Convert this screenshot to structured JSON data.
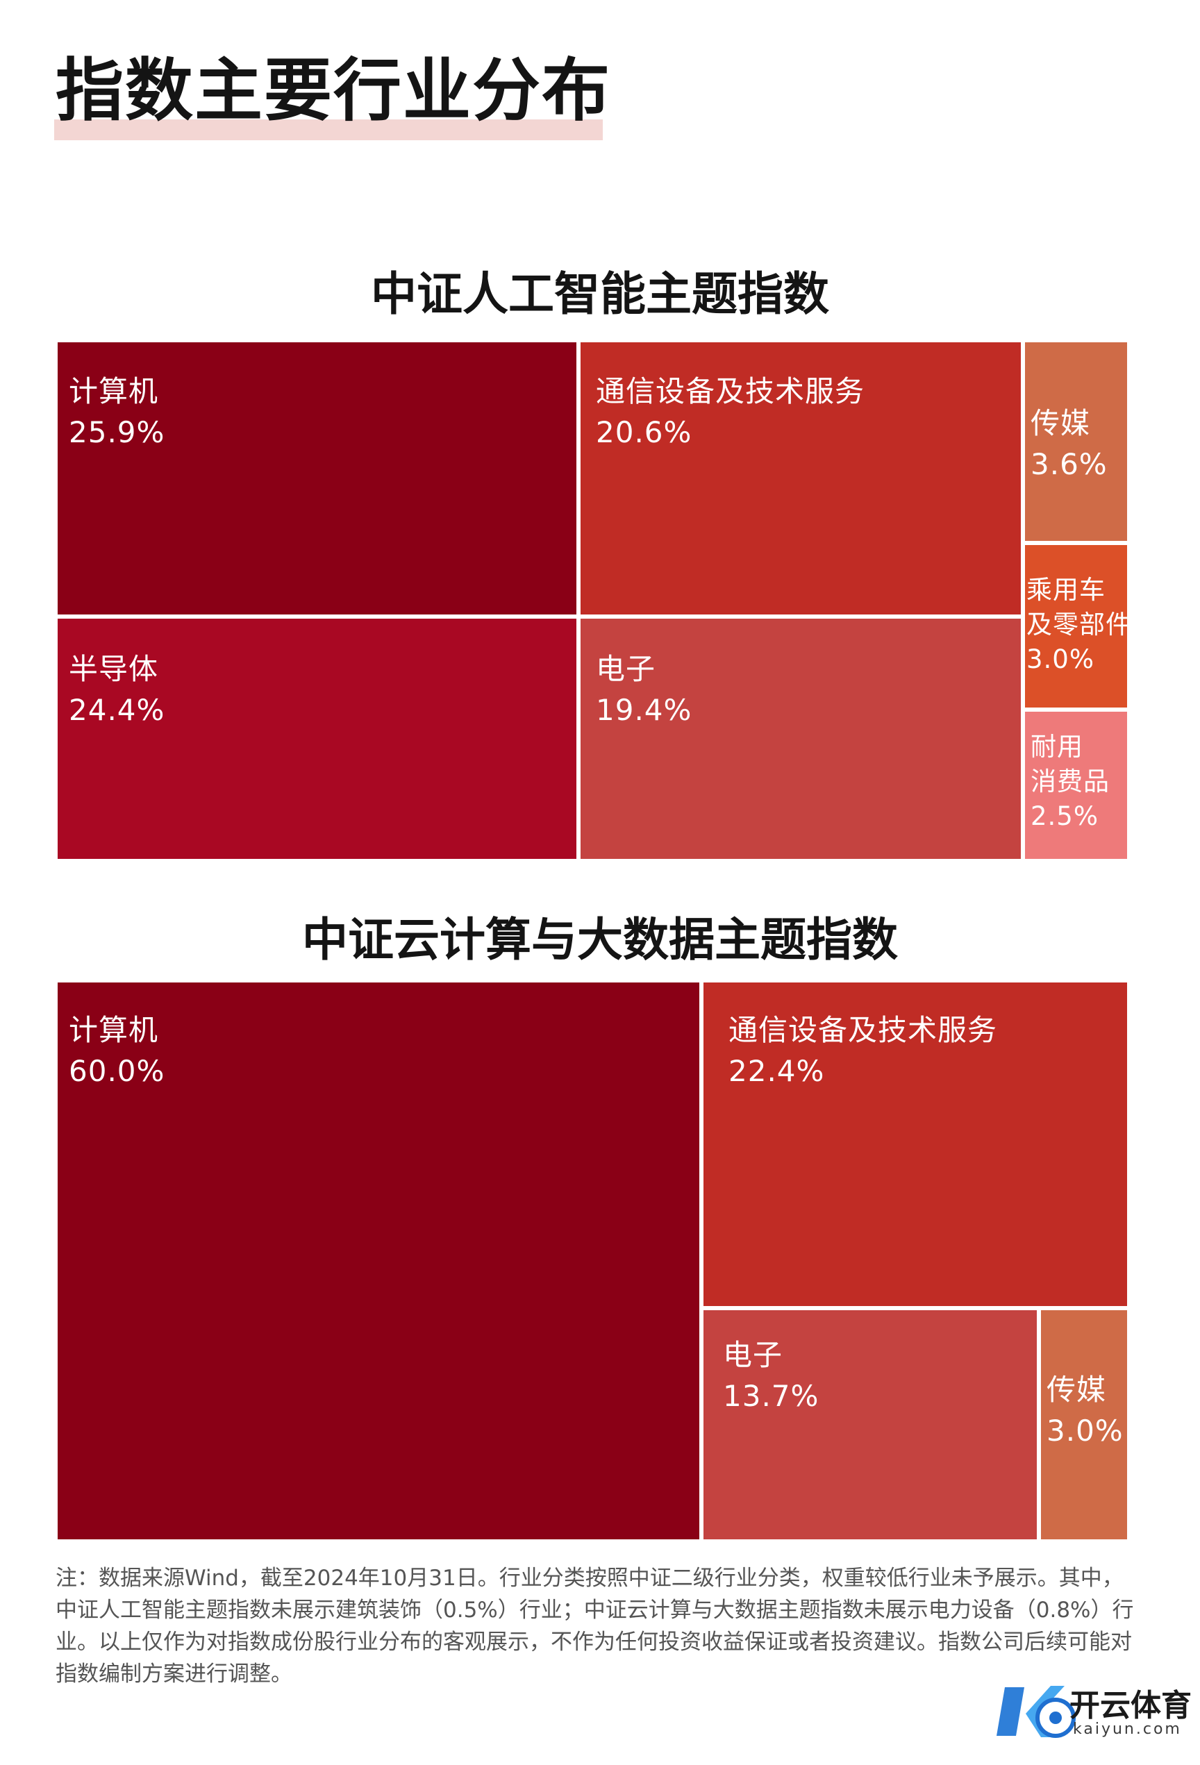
{
  "header": {
    "title": "指数主要行业分布"
  },
  "colors": {
    "computer": "#8a0016",
    "comm": "#c02c25",
    "semi": "#a90823",
    "electronics": "#c44340",
    "media": "#cf6b47",
    "auto": "#dc5028",
    "durables": "#ee7a7a"
  },
  "chart_data": [
    {
      "type": "treemap",
      "title": "中证人工智能主题指数",
      "items": [
        {
          "name": "计算机",
          "value": 25.9,
          "label": "25.9%",
          "color": "#8a0016"
        },
        {
          "name": "半导体",
          "value": 24.4,
          "label": "24.4%",
          "color": "#a90823"
        },
        {
          "name": "通信设备及技术服务",
          "value": 20.6,
          "label": "20.6%",
          "color": "#c02c25"
        },
        {
          "name": "电子",
          "value": 19.4,
          "label": "19.4%",
          "color": "#c44340"
        },
        {
          "name": "传媒",
          "value": 3.6,
          "label": "3.6%",
          "color": "#cf6b47"
        },
        {
          "name": "乘用车及零部件",
          "name_lines": [
            "乘用车",
            "及零部件"
          ],
          "value": 3.0,
          "label": "3.0%",
          "color": "#dc5028"
        },
        {
          "name": "耐用消费品",
          "name_lines": [
            "耐用",
            "消费品"
          ],
          "value": 2.5,
          "label": "2.5%",
          "color": "#ee7a7a"
        }
      ]
    },
    {
      "type": "treemap",
      "title": "中证云计算与大数据主题指数",
      "items": [
        {
          "name": "计算机",
          "value": 60.0,
          "label": "60.0%",
          "color": "#8a0016"
        },
        {
          "name": "通信设备及技术服务",
          "value": 22.4,
          "label": "22.4%",
          "color": "#c02c25"
        },
        {
          "name": "电子",
          "value": 13.7,
          "label": "13.7%",
          "color": "#c44340"
        },
        {
          "name": "传媒",
          "value": 3.0,
          "label": "3.0%",
          "color": "#cf6b47"
        }
      ]
    }
  ],
  "note": "注：数据来源Wind，截至2024年10月31日。行业分类按照中证二级行业分类，权重较低行业未予展示。其中，中证人工智能主题指数未展示建筑装饰（0.5%）行业；中证云计算与大数据主题指数未展示电力设备（0.8%）行业。以上仅作为对指数成份股行业分布的客观展示，不作为任何投资收益保证或者投资建议。指数公司后续可能对指数编制方案进行调整。",
  "logo": {
    "text": "开云体育",
    "sub": "kaiyun.com"
  }
}
